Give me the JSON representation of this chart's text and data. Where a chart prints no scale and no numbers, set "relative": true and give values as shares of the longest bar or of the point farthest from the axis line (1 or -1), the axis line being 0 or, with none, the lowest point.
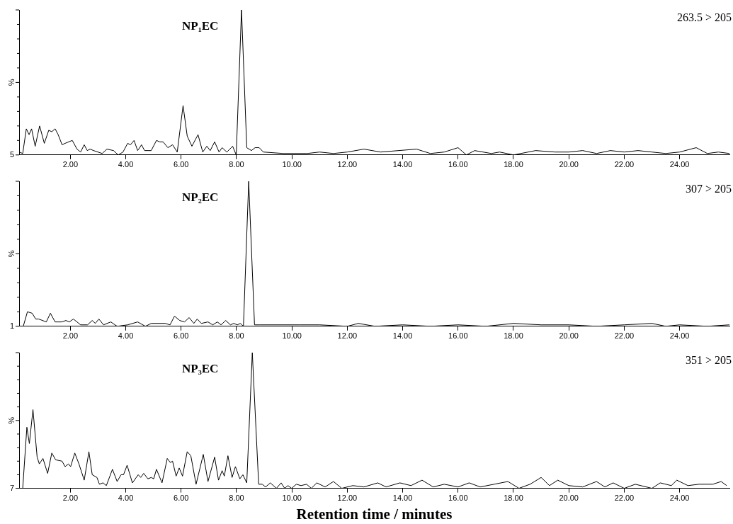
{
  "chart_data": [
    {
      "type": "line",
      "relative": true,
      "ylabel": "%",
      "annotations": [
        "NP₁EC",
        "263.5 > 205",
        "5"
      ],
      "legend": false,
      "grid": false,
      "marker": "none",
      "line_style": "solid",
      "xlim": [
        0.15,
        25.8
      ],
      "xticks": [
        {
          "value": 2,
          "label": "2.00"
        },
        {
          "value": 4,
          "label": "4.00"
        },
        {
          "value": 6,
          "label": "6.00"
        },
        {
          "value": 8,
          "label": "8.00"
        },
        {
          "value": 10,
          "label": "10.00"
        },
        {
          "value": 12,
          "label": "12.00"
        },
        {
          "value": 14,
          "label": "14.00"
        },
        {
          "value": 16,
          "label": "16.00"
        },
        {
          "value": 18,
          "label": "18.00"
        },
        {
          "value": 20,
          "label": "20.00"
        },
        {
          "value": 22,
          "label": "22.00"
        },
        {
          "value": 24,
          "label": "24.00"
        }
      ],
      "series": [
        {
          "color": "#000000",
          "x": [
            0.15,
            0.28,
            0.41,
            0.51,
            0.6,
            0.73,
            0.89,
            1.06,
            1.22,
            1.33,
            1.45,
            1.56,
            1.7,
            1.81,
            2.07,
            2.24,
            2.37,
            2.5,
            2.61,
            2.71,
            2.84,
            3.15,
            3.32,
            3.56,
            3.73,
            3.9,
            4.07,
            4.17,
            4.3,
            4.43,
            4.57,
            4.68,
            4.92,
            5.11,
            5.23,
            5.35,
            5.52,
            5.69,
            5.86,
            6.07,
            6.22,
            6.39,
            6.61,
            6.78,
            6.93,
            7.05,
            7.21,
            7.37,
            7.48,
            7.65,
            7.86,
            7.99,
            8.18,
            8.37,
            8.54,
            8.67,
            8.82,
            8.97,
            9.69,
            10.55,
            11,
            11.5,
            12,
            12.6,
            13.2,
            14.5,
            15,
            15.5,
            16,
            16.3,
            16.6,
            17.2,
            17.5,
            18,
            18.8,
            19.5,
            20,
            20.5,
            21,
            21.5,
            22,
            22.5,
            23,
            23.5,
            24,
            24.6,
            25,
            25.4,
            25.8
          ],
          "values": [
            0.02,
            0.01,
            0.18,
            0.14,
            0.18,
            0.06,
            0.2,
            0.08,
            0.17,
            0.16,
            0.18,
            0.14,
            0.07,
            0.08,
            0.1,
            0.04,
            0.02,
            0.07,
            0.03,
            0.04,
            0.03,
            0.01,
            0.04,
            0.03,
            0,
            0.02,
            0.08,
            0.07,
            0.1,
            0.03,
            0.07,
            0.03,
            0.03,
            0.1,
            0.09,
            0.09,
            0.05,
            0.07,
            0.02,
            0.34,
            0.13,
            0.06,
            0.14,
            0.02,
            0.06,
            0.03,
            0.09,
            0.02,
            0.05,
            0.02,
            0.06,
            0,
            1,
            0.05,
            0.03,
            0.05,
            0.05,
            0.02,
            0.01,
            0.01,
            0.02,
            0.01,
            0.02,
            0.04,
            0.02,
            0.04,
            0.01,
            0.02,
            0.05,
            0,
            0.03,
            0.01,
            0.02,
            0,
            0.03,
            0.02,
            0.02,
            0.03,
            0.01,
            0.03,
            0.02,
            0.03,
            0.02,
            0.01,
            0.02,
            0.05,
            0.01,
            0.02,
            0.01
          ]
        }
      ]
    },
    {
      "type": "line",
      "relative": true,
      "ylabel": "%",
      "annotations": [
        "NP₂EC",
        "307 > 205",
        "1"
      ],
      "legend": false,
      "grid": false,
      "marker": "none",
      "line_style": "solid",
      "xlim": [
        0.15,
        25.8
      ],
      "xticks": [
        {
          "value": 2,
          "label": "2.00"
        },
        {
          "value": 4,
          "label": "4.00"
        },
        {
          "value": 6,
          "label": "6.00"
        },
        {
          "value": 8,
          "label": "8.00"
        },
        {
          "value": 10,
          "label": "10.00"
        },
        {
          "value": 12,
          "label": "12.00"
        },
        {
          "value": 14,
          "label": "14.00"
        },
        {
          "value": 16,
          "label": "16.00"
        },
        {
          "value": 18,
          "label": "18.00"
        },
        {
          "value": 20,
          "label": "20.00"
        },
        {
          "value": 22,
          "label": "22.00"
        },
        {
          "value": 24,
          "label": "24.00"
        }
      ],
      "series": [
        {
          "color": "#000000",
          "x": [
            0.15,
            0.3,
            0.45,
            0.62,
            0.75,
            0.86,
            1.13,
            1.28,
            1.45,
            1.69,
            1.84,
            1.96,
            2.11,
            2.37,
            2.62,
            2.79,
            2.9,
            3.03,
            3.2,
            3.46,
            3.69,
            4.07,
            4.43,
            4.71,
            4.92,
            5.43,
            5.6,
            5.76,
            5.95,
            6.12,
            6.29,
            6.46,
            6.58,
            6.73,
            6.97,
            7.14,
            7.31,
            7.44,
            7.61,
            7.78,
            7.9,
            8.03,
            8.14,
            8.25,
            8.44,
            8.65,
            8.84,
            9.69,
            10.29,
            11,
            12,
            12.4,
            13,
            14,
            15,
            16,
            17,
            18,
            19,
            20,
            21,
            22,
            23,
            23.5,
            24,
            25,
            25.8
          ],
          "values": [
            0,
            0,
            0.1,
            0.09,
            0.05,
            0.05,
            0.03,
            0.09,
            0.03,
            0.03,
            0.04,
            0.03,
            0.05,
            0.01,
            0.01,
            0.04,
            0.02,
            0.05,
            0.01,
            0.03,
            0,
            0.01,
            0.03,
            0,
            0.02,
            0.02,
            0.01,
            0.07,
            0.04,
            0.03,
            0.06,
            0.02,
            0.05,
            0.02,
            0.03,
            0.01,
            0.03,
            0.01,
            0.04,
            0.01,
            0.02,
            0.01,
            0.02,
            0,
            1,
            0.01,
            0.01,
            0.01,
            0.01,
            0.01,
            0,
            0.02,
            0,
            0.01,
            0,
            0.01,
            0,
            0.02,
            0.01,
            0.01,
            0,
            0.01,
            0.02,
            0,
            0.01,
            0,
            0.01
          ]
        }
      ]
    },
    {
      "type": "line",
      "relative": true,
      "ylabel": "%",
      "xlabel": "Retention time / minutes",
      "annotations": [
        "NP₃EC",
        "351 > 205",
        "7"
      ],
      "legend": false,
      "grid": false,
      "marker": "none",
      "line_style": "solid",
      "xlim": [
        0.15,
        25.8
      ],
      "xticks": [
        {
          "value": 2,
          "label": "2.00"
        },
        {
          "value": 4,
          "label": "4.00"
        },
        {
          "value": 6,
          "label": "6.00"
        },
        {
          "value": 8,
          "label": "8.00"
        },
        {
          "value": 10,
          "label": "10.00"
        },
        {
          "value": 12,
          "label": "12.00"
        },
        {
          "value": 14,
          "label": "14.00"
        },
        {
          "value": 16,
          "label": "16.00"
        },
        {
          "value": 18,
          "label": "18.00"
        },
        {
          "value": 20,
          "label": "20.00"
        },
        {
          "value": 22,
          "label": "22.00"
        },
        {
          "value": 24,
          "label": "24.00"
        }
      ],
      "series": [
        {
          "color": "#000000",
          "x": [
            0.15,
            0.28,
            0.43,
            0.52,
            0.65,
            0.8,
            0.88,
            1.01,
            1.18,
            1.33,
            1.47,
            1.7,
            1.81,
            1.93,
            2.01,
            2.16,
            2.31,
            2.5,
            2.67,
            2.79,
            2.96,
            3.05,
            3.18,
            3.3,
            3.52,
            3.69,
            3.83,
            3.92,
            4.05,
            4.24,
            4.45,
            4.54,
            4.65,
            4.8,
            4.92,
            5.01,
            5.11,
            5.31,
            5.5,
            5.61,
            5.69,
            5.82,
            5.93,
            6.05,
            6.22,
            6.35,
            6.54,
            6.8,
            6.97,
            7.21,
            7.35,
            7.48,
            7.56,
            7.69,
            7.84,
            7.96,
            8.12,
            8.23,
            8.37,
            8.57,
            8.8,
            8.93,
            9.05,
            9.22,
            9.44,
            9.61,
            9.74,
            9.86,
            9.99,
            10.16,
            10.33,
            10.53,
            10.7,
            10.9,
            11.2,
            11.5,
            11.8,
            12.2,
            12.6,
            13.1,
            13.4,
            13.9,
            14.3,
            14.7,
            15.1,
            15.5,
            16,
            16.4,
            16.8,
            17.3,
            17.8,
            18.2,
            18.6,
            19,
            19.3,
            19.6,
            20,
            20.5,
            21,
            21.3,
            21.6,
            22,
            22.4,
            23,
            23.3,
            23.7,
            23.9,
            24.3,
            24.7,
            25.2,
            25.5,
            25.7
          ],
          "values": [
            0,
            0,
            0.45,
            0.33,
            0.58,
            0.23,
            0.18,
            0.22,
            0.11,
            0.26,
            0.21,
            0.2,
            0.16,
            0.18,
            0.16,
            0.26,
            0.18,
            0.06,
            0.27,
            0.1,
            0.08,
            0.03,
            0.04,
            0.02,
            0.14,
            0.05,
            0.1,
            0.1,
            0.17,
            0.04,
            0.1,
            0.08,
            0.11,
            0.07,
            0.08,
            0.07,
            0.14,
            0.04,
            0.22,
            0.19,
            0.2,
            0.09,
            0.15,
            0.09,
            0.27,
            0.24,
            0.03,
            0.25,
            0.05,
            0.23,
            0.06,
            0.13,
            0.09,
            0.24,
            0.08,
            0.16,
            0.07,
            0.1,
            0.04,
            1,
            0.03,
            0.03,
            0.01,
            0.04,
            0,
            0.04,
            0,
            0.02,
            0,
            0.03,
            0.02,
            0.03,
            0,
            0.04,
            0.01,
            0.05,
            0,
            0.02,
            0.01,
            0.04,
            0.01,
            0.04,
            0.02,
            0.06,
            0.01,
            0.03,
            0.01,
            0.04,
            0.01,
            0.03,
            0.05,
            0,
            0.03,
            0.08,
            0.02,
            0.06,
            0.02,
            0.01,
            0.05,
            0.01,
            0.04,
            0,
            0.03,
            0,
            0.04,
            0.02,
            0.06,
            0.02,
            0.03,
            0.03,
            0.05,
            0.02
          ]
        }
      ]
    }
  ]
}
